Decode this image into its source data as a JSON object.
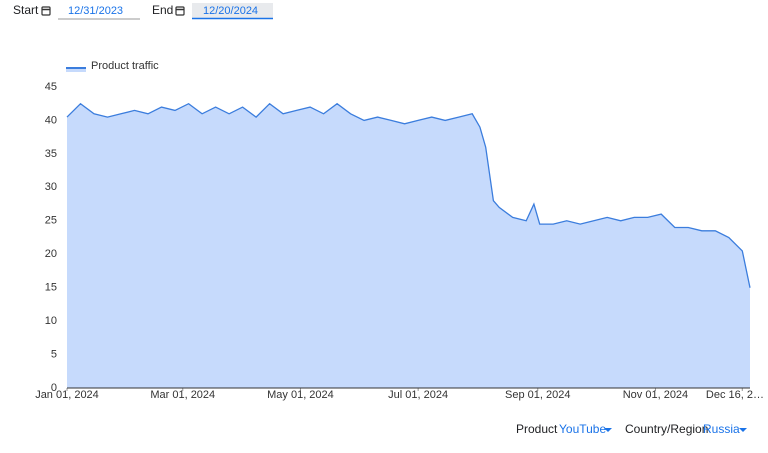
{
  "controls": {
    "start_label": "Start",
    "start_value": "12/31/2023",
    "end_label": "End",
    "end_value": "12/20/2024",
    "product_label": "Product",
    "product_value": "YouTube",
    "region_label": "Country/Region",
    "region_value": "Russia"
  },
  "chart_data": {
    "type": "area",
    "legend": "top-left",
    "x": [
      "2024-01-01",
      "2024-01-08",
      "2024-01-15",
      "2024-01-22",
      "2024-01-29",
      "2024-02-05",
      "2024-02-12",
      "2024-02-19",
      "2024-02-26",
      "2024-03-04",
      "2024-03-11",
      "2024-03-18",
      "2024-03-25",
      "2024-04-01",
      "2024-04-08",
      "2024-04-15",
      "2024-04-22",
      "2024-04-29",
      "2024-05-06",
      "2024-05-13",
      "2024-05-20",
      "2024-05-27",
      "2024-06-03",
      "2024-06-10",
      "2024-06-17",
      "2024-06-24",
      "2024-07-01",
      "2024-07-08",
      "2024-07-15",
      "2024-07-22",
      "2024-07-29",
      "2024-08-02",
      "2024-08-05",
      "2024-08-09",
      "2024-08-12",
      "2024-08-19",
      "2024-08-26",
      "2024-08-30",
      "2024-09-02",
      "2024-09-09",
      "2024-09-16",
      "2024-09-23",
      "2024-09-30",
      "2024-10-07",
      "2024-10-14",
      "2024-10-21",
      "2024-10-28",
      "2024-11-04",
      "2024-11-11",
      "2024-11-18",
      "2024-11-25",
      "2024-12-02",
      "2024-12-09",
      "2024-12-16",
      "2024-12-20"
    ],
    "series": [
      {
        "name": "Product traffic",
        "color": "#3b7ddd",
        "fill": "#c6dafc",
        "values": [
          40.5,
          42.5,
          41,
          40.5,
          41,
          41.5,
          41,
          42,
          41.5,
          42.5,
          41,
          42,
          41,
          42,
          40.5,
          42.5,
          41,
          41.5,
          42,
          41,
          42.5,
          41,
          40,
          40.5,
          40,
          39.5,
          40,
          40.5,
          40,
          40.5,
          41,
          39,
          36,
          28,
          27,
          25.5,
          25,
          27.5,
          24.5,
          24.5,
          25,
          24.5,
          25,
          25.5,
          25,
          25.5,
          25.5,
          26,
          24,
          24,
          23.5,
          23.5,
          22.5,
          20.5,
          15
        ]
      }
    ],
    "xlim": [
      "2024-01-01",
      "2024-12-20"
    ],
    "xticks": [
      {
        "value": "2024-01-01",
        "label": "Jan 01, 2024"
      },
      {
        "value": "2024-03-01",
        "label": "Mar 01, 2024"
      },
      {
        "value": "2024-05-01",
        "label": "May 01, 2024"
      },
      {
        "value": "2024-07-01",
        "label": "Jul 01, 2024"
      },
      {
        "value": "2024-09-01",
        "label": "Sep 01, 2024"
      },
      {
        "value": "2024-11-01",
        "label": "Nov 01, 2024"
      },
      {
        "value": "2024-12-16",
        "label": "Dec 16, 2…"
      }
    ],
    "ylim": [
      0,
      45
    ],
    "yticks": [
      0,
      5,
      10,
      15,
      20,
      25,
      30,
      35,
      40,
      45
    ]
  }
}
